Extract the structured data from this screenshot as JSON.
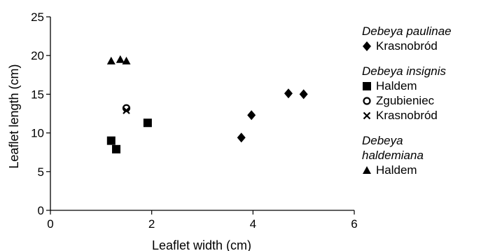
{
  "chart_data": {
    "type": "scatter",
    "xlabel": "Leaflet width (cm)",
    "ylabel": "Leaflet length (cm)",
    "xlim": [
      0,
      6
    ],
    "ylim": [
      0,
      25
    ],
    "xticks": [
      "0",
      "2",
      "4",
      "6"
    ],
    "yticks": [
      "0",
      "5",
      "10",
      "15",
      "20",
      "25"
    ],
    "grid": false,
    "legend_position": "right",
    "series": [
      {
        "group": "Debeya paulinae",
        "name": "Krasnobród",
        "marker": "diamond",
        "points": [
          [
            3.77,
            9.4
          ],
          [
            3.97,
            12.3
          ],
          [
            4.7,
            15.1
          ],
          [
            5.0,
            15.0
          ]
        ]
      },
      {
        "group": "Debeya insignis",
        "name": "Haldem",
        "marker": "square",
        "points": [
          [
            1.2,
            9.0
          ],
          [
            1.3,
            7.9
          ],
          [
            1.92,
            11.3
          ]
        ]
      },
      {
        "group": "Debeya insignis",
        "name": "Zgubieniec",
        "marker": "circle",
        "points": [
          [
            1.5,
            13.2
          ]
        ]
      },
      {
        "group": "Debeya insignis",
        "name": "Krasnobród",
        "marker": "cross",
        "points": [
          [
            1.5,
            12.9
          ]
        ]
      },
      {
        "group": "Debeya haldemiana",
        "name": "Haldem",
        "marker": "triangle",
        "points": [
          [
            1.2,
            19.3
          ],
          [
            1.38,
            19.5
          ],
          [
            1.5,
            19.3
          ]
        ]
      }
    ]
  },
  "legend": {
    "groups": [
      {
        "title": "Debeya paulinae",
        "entries": [
          {
            "marker": "diamond",
            "label": "Krasnobród"
          }
        ]
      },
      {
        "title": "Debeya insignis",
        "entries": [
          {
            "marker": "square",
            "label": "Haldem"
          },
          {
            "marker": "circle",
            "label": "Zgubieniec"
          },
          {
            "marker": "cross",
            "label": "Krasnobród"
          }
        ]
      },
      {
        "title_lines": [
          "Debeya",
          "haldemiana"
        ],
        "entries": [
          {
            "marker": "triangle",
            "label": "Haldem"
          }
        ]
      }
    ]
  }
}
